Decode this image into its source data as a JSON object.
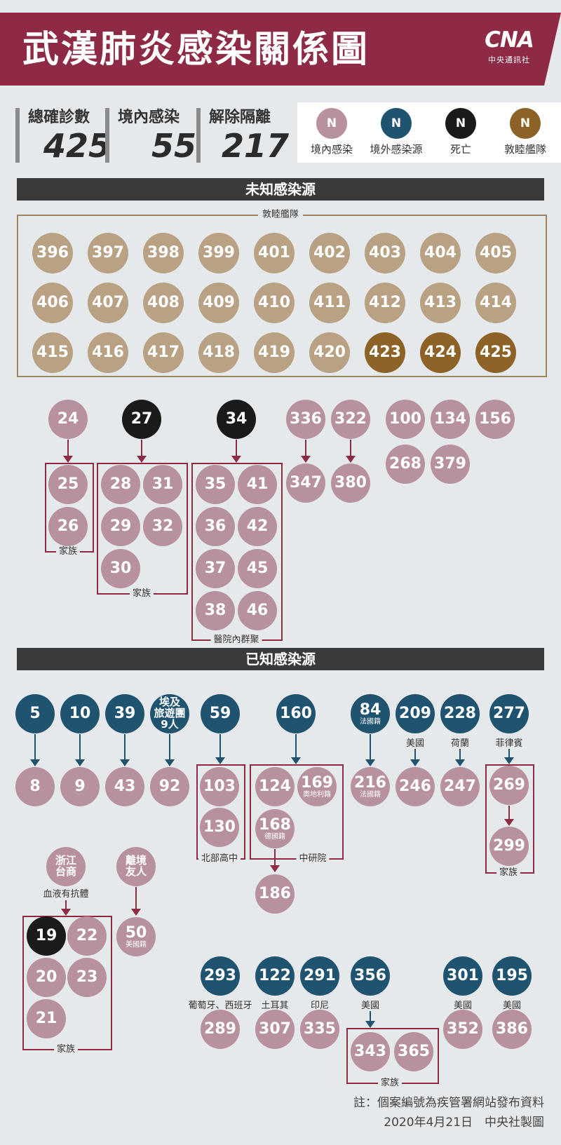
{
  "title": "武漢肺炎感染關係圖",
  "logo": {
    "mark": "CNA",
    "sub": "中央通訊社"
  },
  "stats": [
    {
      "label": "總確診數",
      "value": "425"
    },
    {
      "label": "境內感染",
      "value": "55"
    },
    {
      "label": "解除隔離",
      "value": "217"
    }
  ],
  "legend": [
    {
      "symbol": "N",
      "label": "境內感染",
      "color": "#b7919e"
    },
    {
      "symbol": "N",
      "label": "境外感染源",
      "color": "#1f5370"
    },
    {
      "symbol": "N",
      "label": "死亡",
      "color": "#1a1a1a"
    },
    {
      "symbol": "N",
      "label": "敦睦艦隊",
      "color": "#8c6226"
    }
  ],
  "sections": {
    "unknown": "未知感染源",
    "known": "已知感染源"
  },
  "fleet": {
    "caption": "敦睦艦隊",
    "rows": [
      [
        "396",
        "397",
        "398",
        "399",
        "401",
        "402",
        "403",
        "404",
        "405"
      ],
      [
        "406",
        "407",
        "408",
        "409",
        "410",
        "411",
        "412",
        "413",
        "414"
      ],
      [
        "415",
        "416",
        "417",
        "418",
        "419",
        "420",
        "423",
        "424",
        "425"
      ]
    ],
    "deceased": [
      "423",
      "424",
      "425"
    ]
  },
  "unknown_groups": [
    {
      "source": "24",
      "cases": [
        "25",
        "26"
      ],
      "caption": "家族"
    },
    {
      "source": "27",
      "cases": [
        "28",
        "31",
        "29",
        "32",
        "30"
      ],
      "caption": "家族"
    },
    {
      "source": "34",
      "cases": [
        "35",
        "41",
        "36",
        "42",
        "37",
        "45",
        "38",
        "46"
      ],
      "caption": "醫院內群聚"
    },
    {
      "source": "336",
      "cases": [
        "347"
      ]
    },
    {
      "source": "322",
      "cases": [
        "380"
      ]
    },
    {
      "singles": [
        "100",
        "134",
        "156",
        "268",
        "379"
      ]
    }
  ],
  "known_links": [
    {
      "source": "5",
      "target": "8"
    },
    {
      "source": "10",
      "target": "9"
    },
    {
      "source": "39",
      "target": "43"
    },
    {
      "source": "埃及旅遊團9人",
      "source_lines": [
        "埃及",
        "旅遊團",
        "9人"
      ],
      "target": "92"
    },
    {
      "source": "59",
      "cases": [
        "103",
        "130"
      ],
      "caption": "北部高中"
    },
    {
      "source": "160",
      "cases": [
        "124",
        "169",
        "168"
      ],
      "notes": {
        "169": "奧地利籍",
        "168": "德國籍"
      },
      "caption": "中研院",
      "next": "186"
    },
    {
      "source": "84",
      "source_note": "法國籍",
      "target": "216",
      "target_note": "法國籍"
    },
    {
      "source": "209",
      "note": "美國",
      "target": "246"
    },
    {
      "source": "228",
      "note": "荷蘭",
      "target": "247"
    },
    {
      "source": "277",
      "note": "菲律賓",
      "cases": [
        "269",
        "299"
      ],
      "caption": "家族"
    },
    {
      "source": "浙江台商",
      "source_lines": [
        "浙江",
        "台商"
      ],
      "note": "血液有抗體",
      "cases": [
        "19",
        "22",
        "20",
        "23",
        "21"
      ],
      "deceased": [
        "19"
      ],
      "caption": "家族"
    },
    {
      "source": "離境友人",
      "source_lines": [
        "離境",
        "友人"
      ],
      "target": "50",
      "target_note": "美國籍"
    },
    {
      "source": "293",
      "note": "葡萄牙、西班牙",
      "target": "289"
    },
    {
      "source": "122",
      "note": "土耳其",
      "target": "307"
    },
    {
      "source": "291",
      "note": "印尼",
      "target": "335"
    },
    {
      "source": "356",
      "note": "美國",
      "cases": [
        "343",
        "365"
      ],
      "caption": "家族"
    },
    {
      "source": "301",
      "note": "美國",
      "target": "352"
    },
    {
      "source": "195",
      "note": "美國",
      "target": "386"
    }
  ],
  "footer": {
    "note": "註：個案編號為疾管署網站發布資料",
    "credit": "2020年4月21日　中央社製圖"
  }
}
